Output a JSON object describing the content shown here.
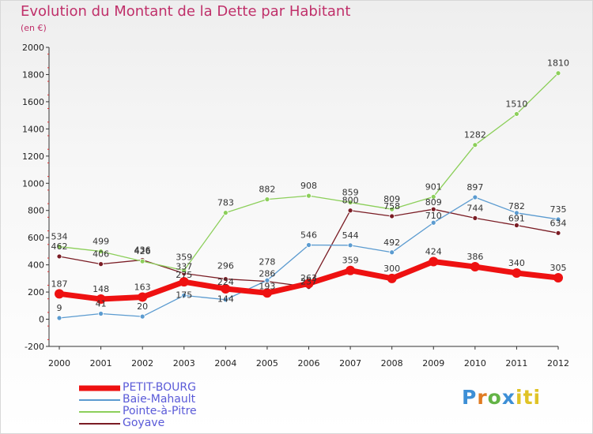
{
  "chart_data": {
    "type": "line",
    "title": "Evolution du Montant de la Dette par Habitant",
    "subtitle": "(en €)",
    "x": [
      "2000",
      "2001",
      "2002",
      "2003",
      "2004",
      "2005",
      "2006",
      "2007",
      "2008",
      "2009",
      "2010",
      "2011",
      "2012"
    ],
    "ylim": [
      -200,
      2000
    ],
    "yticks": [
      "-200",
      "0",
      "200",
      "400",
      "600",
      "800",
      "1000",
      "1200",
      "1400",
      "1600",
      "1800",
      "2000"
    ],
    "grid": false,
    "legend_position": "bottom-left",
    "series": [
      {
        "name": "PETIT-BOURG",
        "color": "#ee1111",
        "values": [
          187,
          148,
          163,
          275,
          224,
          193,
          263,
          359,
          300,
          424,
          386,
          340,
          305
        ],
        "labels": [
          "187",
          "148",
          "163",
          "",
          "",
          "",
          "",
          "359",
          "300",
          "424",
          "386",
          "340",
          "305"
        ]
      },
      {
        "name": "Baie-Mahault",
        "color": "#5b9bd0",
        "values": [
          9,
          41,
          20,
          175,
          144,
          286,
          546,
          544,
          492,
          710,
          897,
          782,
          735
        ],
        "labels": [
          "9",
          "41",
          "20",
          "",
          "",
          "",
          "546",
          "544",
          "492",
          "",
          "897",
          "",
          "735"
        ]
      },
      {
        "name": "Pointe-à-Pitre",
        "color": "#8ccf5a",
        "values": [
          534,
          499,
          426,
          359,
          783,
          882,
          908,
          859,
          809,
          901,
          1282,
          1510,
          1810
        ],
        "labels": [
          "534",
          "499",
          "426",
          "",
          "783",
          "882",
          "908",
          "859",
          "809",
          "901",
          "1282",
          "1510",
          "1810"
        ]
      },
      {
        "name": "Goyave",
        "color": "#7a1c24",
        "values": [
          462,
          406,
          436,
          337,
          296,
          278,
          237,
          800,
          758,
          809,
          744,
          691,
          634
        ],
        "labels": [
          "462",
          "406",
          "",
          "",
          "",
          "",
          "",
          "800",
          "758",
          "",
          "744",
          "",
          "634"
        ]
      }
    ],
    "extra_labels": [
      "275",
      "224",
      "193",
      "263",
      "175",
      "144",
      "286",
      "710",
      "782",
      "359",
      "337",
      "296",
      "278",
      "237",
      "809",
      "691",
      "436"
    ]
  },
  "logo": {
    "letters": [
      "P",
      "r",
      "o",
      "x",
      "iti"
    ]
  }
}
